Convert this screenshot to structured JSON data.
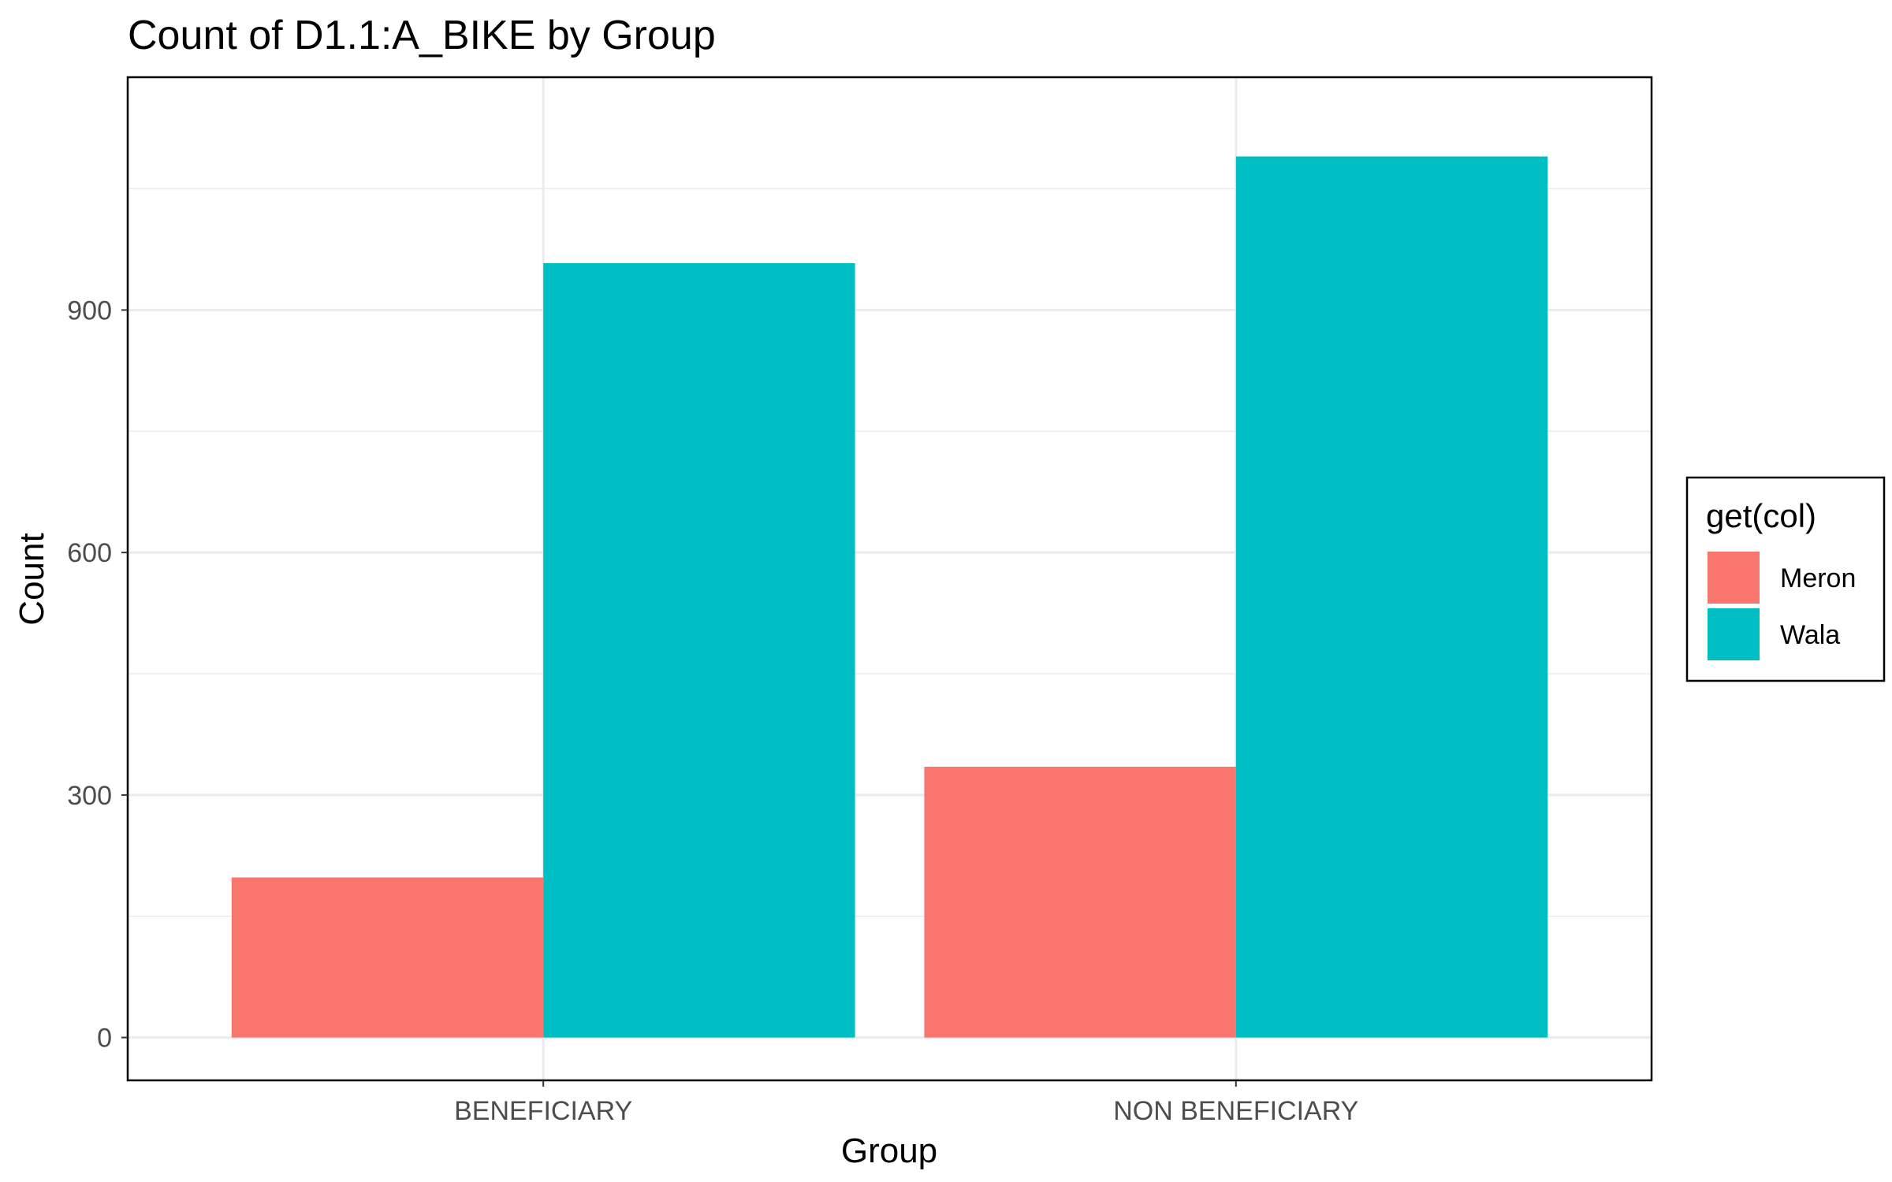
{
  "chart_data": {
    "type": "bar",
    "title": "Count of D1.1:A_BIKE by Group",
    "xlabel": "Group",
    "ylabel": "Count",
    "categories": [
      "BENEFICIARY",
      "NON BENEFICIARY"
    ],
    "series": [
      {
        "name": "Meron",
        "color": "#F8766D",
        "values": [
          198,
          335
        ]
      },
      {
        "name": "Wala",
        "color": "#00BFC4",
        "values": [
          958,
          1090
        ]
      }
    ],
    "ylim": [
      -53,
      1188
    ],
    "yticks": [
      0,
      300,
      600,
      900
    ],
    "grid": true,
    "legend": {
      "title": "get(col)",
      "position": "right"
    }
  }
}
